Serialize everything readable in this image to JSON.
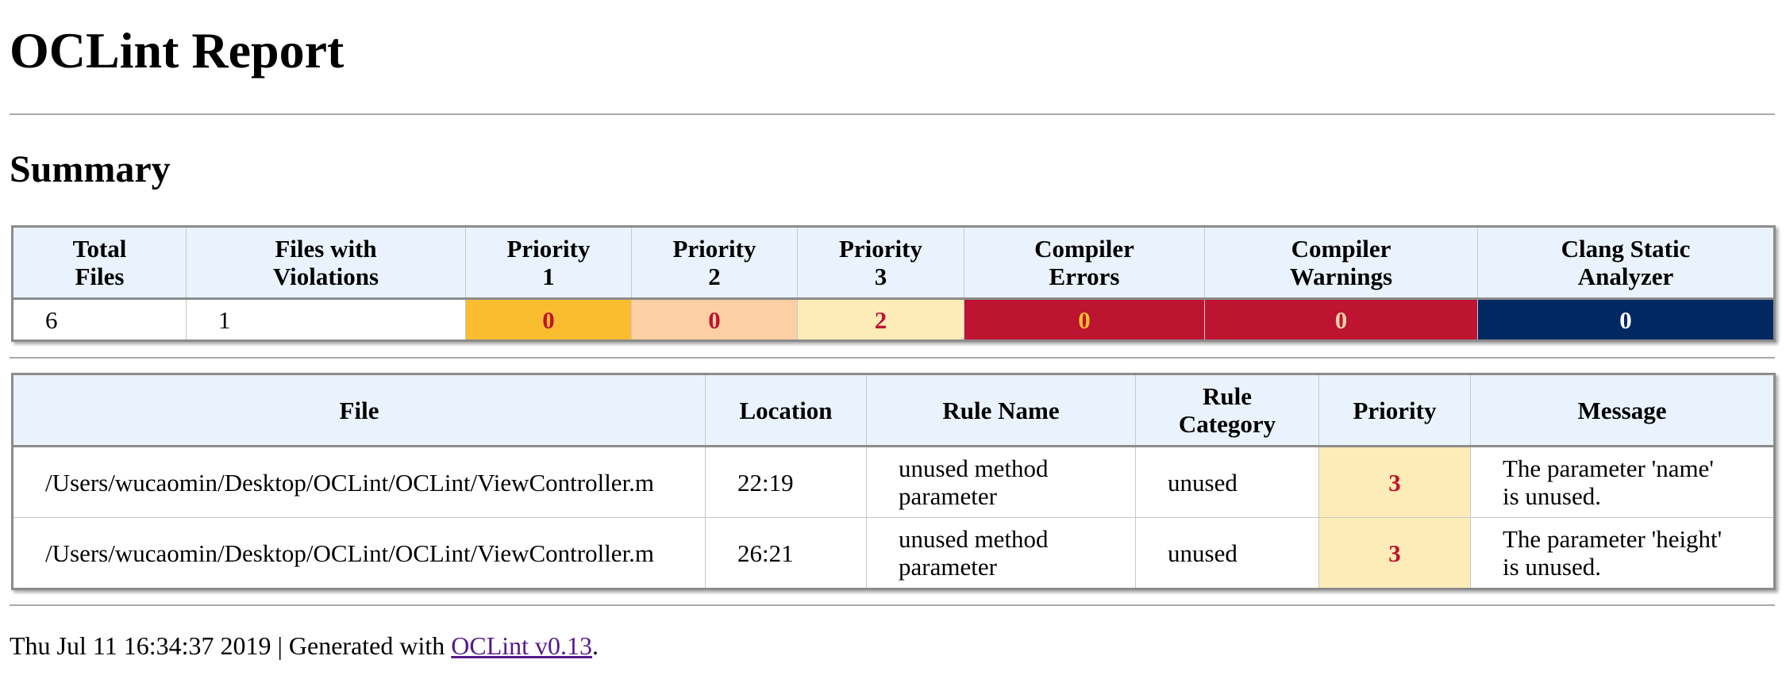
{
  "title": "OCLint Report",
  "summary_heading": "Summary",
  "summary": {
    "headers": [
      [
        "Total",
        "Files"
      ],
      [
        "Files with",
        "Violations"
      ],
      [
        "Priority",
        "1"
      ],
      [
        "Priority",
        "2"
      ],
      [
        "Priority",
        "3"
      ],
      [
        "Compiler",
        "Errors"
      ],
      [
        "Compiler",
        "Warnings"
      ],
      [
        "Clang Static",
        "Analyzer"
      ]
    ],
    "values": [
      "6",
      "1",
      "0",
      "0",
      "2",
      "0",
      "0",
      "0"
    ]
  },
  "colors": {
    "header_bg": "#eaf3fd",
    "priority1_bg": "#fbbd30",
    "priority2_bg": "#fdd0a4",
    "priority3_bg": "#feecb8",
    "compiler_bg": "#bc1431",
    "analyzer_bg": "#022862",
    "accent_red": "#c0132f",
    "accent_yellow": "#fbbd30",
    "link": "#551a8b"
  },
  "violations": {
    "headers": [
      [
        "File"
      ],
      [
        "Location"
      ],
      [
        "Rule Name"
      ],
      [
        "Rule",
        "Category"
      ],
      [
        "Priority"
      ],
      [
        "Message"
      ]
    ],
    "rows": [
      {
        "file": "/Users/wucaomin/Desktop/OCLint/OCLint/ViewController.m",
        "location": "22:19",
        "rule_name": [
          "unused method",
          "parameter"
        ],
        "rule_category": "unused",
        "priority": "3",
        "message": [
          "The parameter 'name'",
          "is unused."
        ]
      },
      {
        "file": "/Users/wucaomin/Desktop/OCLint/OCLint/ViewController.m",
        "location": "26:21",
        "rule_name": [
          "unused method",
          "parameter"
        ],
        "rule_category": "unused",
        "priority": "3",
        "message": [
          "The parameter 'height'",
          "is unused."
        ]
      }
    ]
  },
  "footer": {
    "timestamp_text": "Thu Jul 11 16:34:37 2019 | Generated with ",
    "link_text": "OCLint v0.13",
    "suffix": "."
  }
}
